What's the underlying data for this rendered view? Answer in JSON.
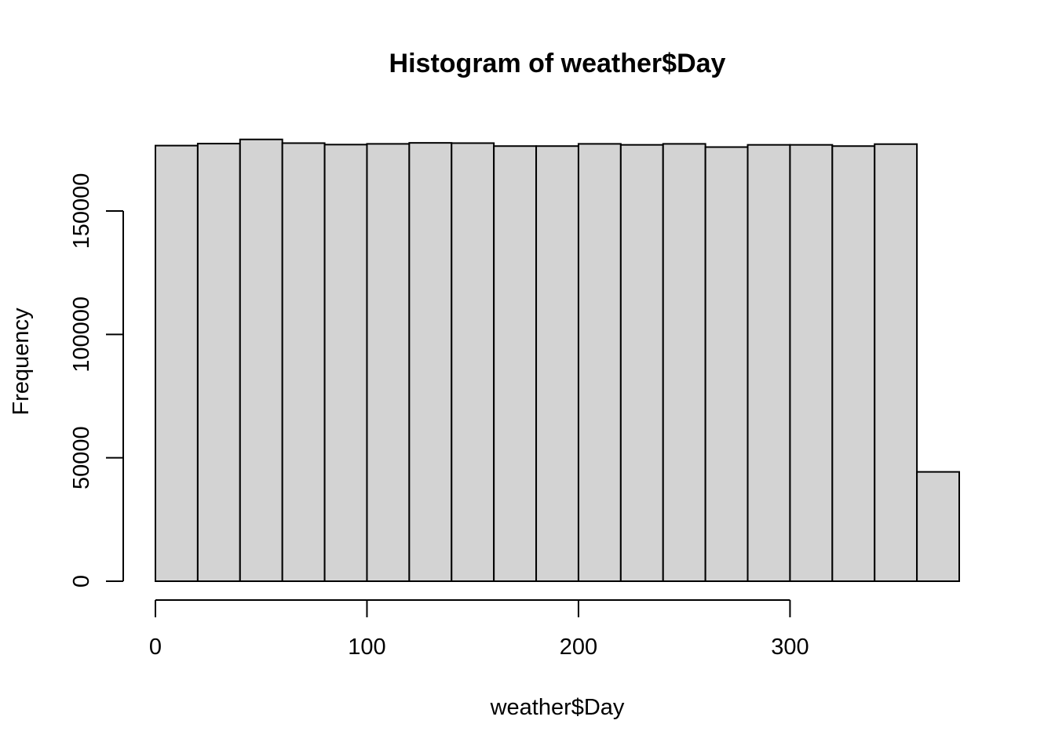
{
  "chart_data": {
    "type": "bar",
    "title": "Histogram of weather$Day",
    "xlabel": "weather$Day",
    "ylabel": "Frequency",
    "bin_edges": [
      0,
      20,
      40,
      60,
      80,
      100,
      120,
      140,
      160,
      180,
      200,
      220,
      240,
      260,
      280,
      300,
      320,
      340,
      360,
      380
    ],
    "values": [
      176500,
      177300,
      179000,
      177500,
      176900,
      177200,
      177600,
      177500,
      176300,
      176300,
      177200,
      176800,
      177200,
      175900,
      176800,
      176800,
      176300,
      177100,
      44300
    ],
    "x_ticks": [
      0,
      100,
      200,
      300
    ],
    "x_tick_labels": [
      "0",
      "100",
      "200",
      "300"
    ],
    "y_ticks": [
      0,
      50000,
      100000,
      150000
    ],
    "y_tick_labels": [
      "0",
      "50000",
      "100000",
      "150000"
    ],
    "xlim": [
      0,
      380
    ],
    "ylim": [
      0,
      150000
    ],
    "bar_fill": "#d3d3d3",
    "bar_stroke": "#000000",
    "grid": false,
    "legend": "none"
  }
}
